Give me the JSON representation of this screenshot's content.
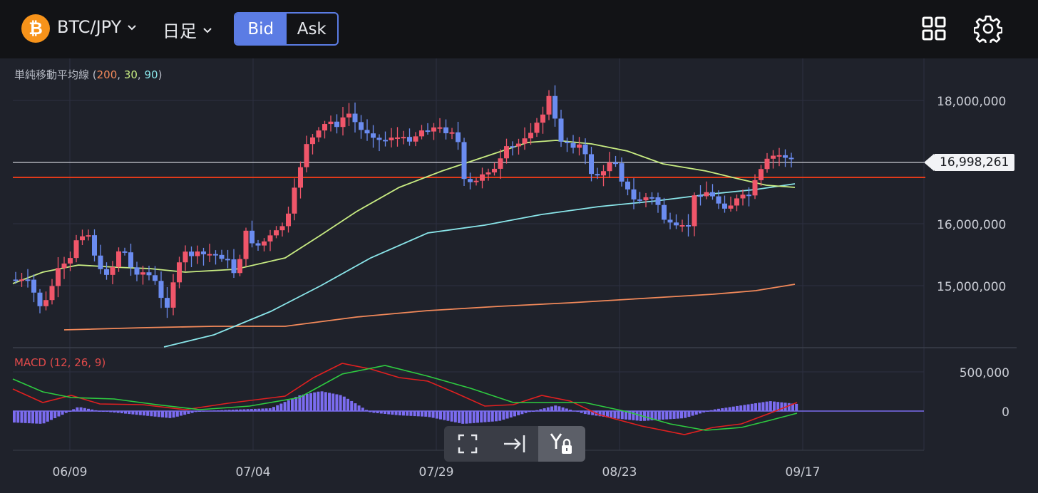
{
  "header": {
    "coin_symbol": "₿",
    "pair": "BTC/JPY",
    "timeframe": "日足",
    "bid_label": "Bid",
    "ask_label": "Ask",
    "active_side": "Bid",
    "icons": [
      "layout-grid-icon",
      "settings-gear-icon"
    ]
  },
  "indicators": {
    "sma_label": "単純移動平均線",
    "sma_open": " (",
    "sma_p1": "200",
    "sma_sep1": ", ",
    "sma_p2": "30",
    "sma_sep2": ", ",
    "sma_p3": "90",
    "sma_close": ")",
    "macd_label": "MACD (12, 26, 9)"
  },
  "axis": {
    "price_ticks": [
      "18,000,000",
      "16,000,000",
      "15,000,000"
    ],
    "current_price": "16,998,261",
    "macd_ticks": [
      "500,000",
      "0"
    ],
    "date_ticks": [
      "06/09",
      "07/04",
      "07/29",
      "08/23",
      "09/17"
    ]
  },
  "colors": {
    "up": "#f0566a",
    "down": "#6b8cf0",
    "sma200": "#f2895a",
    "sma30": "#c8ec82",
    "sma90": "#8ae6ea",
    "macd": "#e12020",
    "signal": "#2ecc40",
    "hist": "#7b6cf0",
    "resistance": "#e13a1a",
    "current_line": "#c9ccd4"
  },
  "tools": [
    "fit-screen-icon",
    "scroll-to-latest-icon",
    "y-axis-lock-icon"
  ]
}
